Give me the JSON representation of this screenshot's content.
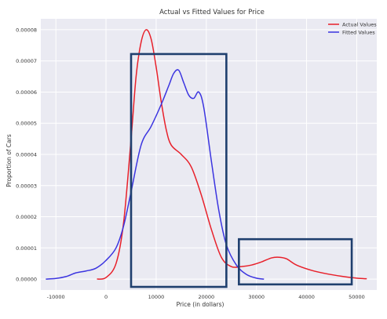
{
  "chart_data": {
    "type": "line",
    "title": "Actual vs Fitted Values for Price",
    "xlabel": "Price (in dollars)",
    "ylabel": "Proportion of Cars",
    "xlim": [
      -13000,
      54000
    ],
    "ylim": [
      -3.5e-06,
      8.35e-05
    ],
    "x_ticks": [
      -10000,
      0,
      10000,
      20000,
      30000,
      40000,
      50000
    ],
    "x_tick_labels": [
      "-10000",
      "0",
      "10000",
      "20000",
      "30000",
      "40000",
      "50000"
    ],
    "y_ticks": [
      0,
      1e-05,
      2e-05,
      3e-05,
      4e-05,
      5e-05,
      6e-05,
      7e-05,
      8e-05
    ],
    "y_tick_labels": [
      "0.00000",
      "0.00001",
      "0.00002",
      "0.00003",
      "0.00004",
      "0.00005",
      "0.00006",
      "0.00007",
      "0.00008"
    ],
    "grid": true,
    "legend_position": "top-right",
    "background": "#eaeaf2",
    "series": [
      {
        "name": "Actual Values",
        "color": "#e8202a",
        "points": [
          [
            -1800,
            0
          ],
          [
            0,
            5e-07
          ],
          [
            2000,
            5e-06
          ],
          [
            3500,
            1.8e-05
          ],
          [
            5000,
            4.5e-05
          ],
          [
            6000,
            6.5e-05
          ],
          [
            7000,
            7.6e-05
          ],
          [
            8000,
            8e-05
          ],
          [
            9000,
            7.7e-05
          ],
          [
            10000,
            6.8e-05
          ],
          [
            11000,
            5.7e-05
          ],
          [
            12000,
            4.8e-05
          ],
          [
            13000,
            4.3e-05
          ],
          [
            15000,
            4e-05
          ],
          [
            17000,
            3.6e-05
          ],
          [
            19000,
            2.7e-05
          ],
          [
            21000,
            1.6e-05
          ],
          [
            23000,
            7e-06
          ],
          [
            25000,
            4e-06
          ],
          [
            27000,
            4e-06
          ],
          [
            29000,
            4.5e-06
          ],
          [
            31000,
            5.5e-06
          ],
          [
            33000,
            6.8e-06
          ],
          [
            34500,
            7e-06
          ],
          [
            36000,
            6.5e-06
          ],
          [
            38000,
            4.5e-06
          ],
          [
            41000,
            2.8e-06
          ],
          [
            44000,
            1.7e-06
          ],
          [
            47000,
            9e-07
          ],
          [
            50000,
            3e-07
          ],
          [
            52000,
            1e-07
          ]
        ]
      },
      {
        "name": "Fitted Values",
        "color": "#3b34e0",
        "points": [
          [
            -12000,
            0
          ],
          [
            -10000,
            2e-07
          ],
          [
            -8000,
            8e-07
          ],
          [
            -6000,
            2e-06
          ],
          [
            -4000,
            2.6e-06
          ],
          [
            -2000,
            3.5e-06
          ],
          [
            0,
            6e-06
          ],
          [
            2000,
            1e-05
          ],
          [
            3500,
            1.7e-05
          ],
          [
            5000,
            2.8e-05
          ],
          [
            7000,
            4.3e-05
          ],
          [
            9000,
            4.9e-05
          ],
          [
            11000,
            5.6e-05
          ],
          [
            12500,
            6.2e-05
          ],
          [
            13500,
            6.6e-05
          ],
          [
            14500,
            6.7e-05
          ],
          [
            15500,
            6.3e-05
          ],
          [
            16500,
            5.9e-05
          ],
          [
            17500,
            5.8e-05
          ],
          [
            18500,
            6e-05
          ],
          [
            19500,
            5.5e-05
          ],
          [
            21000,
            3.8e-05
          ],
          [
            22500,
            2.2e-05
          ],
          [
            24000,
            1.1e-05
          ],
          [
            26000,
            4.5e-06
          ],
          [
            28000,
            1.5e-06
          ],
          [
            30000,
            3e-07
          ],
          [
            31500,
            0
          ]
        ]
      }
    ],
    "annotations": [
      {
        "type": "rectangle",
        "color": "#1f3f6e",
        "x": [
          5000,
          24000
        ],
        "y": [
          -2.5e-06,
          7.22e-05
        ]
      },
      {
        "type": "rectangle",
        "color": "#1f3f6e",
        "x": [
          26500,
          49000
        ],
        "y": [
          -1.7e-06,
          1.28e-05
        ]
      }
    ]
  }
}
